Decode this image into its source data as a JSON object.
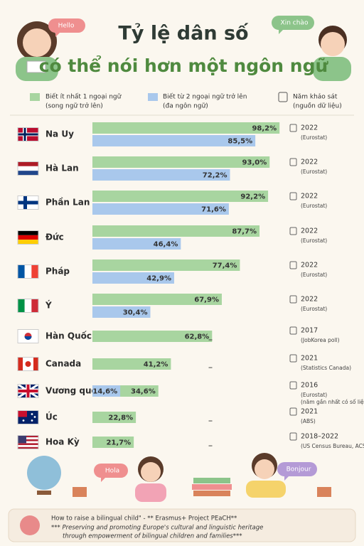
{
  "chart_data": {
    "type": "bar",
    "orientation": "horizontal",
    "title": "Tỷ lệ dân số",
    "subtitle": "có thể nói hơn một ngôn ngữ",
    "categories": [
      "Na Uy",
      "Hà Lan",
      "Phần Lan",
      "Đức",
      "Pháp",
      "Ý",
      "Hàn Quốc",
      "Canada",
      "Vương quốc Anh",
      "Úc",
      "Hoa Kỳ"
    ],
    "series": [
      {
        "name": "Biết ít nhất 1 ngoại ngữ",
        "subtitle": "(song ngữ trở lên)",
        "color": "#a8d5a0",
        "values": [
          98.2,
          93.0,
          92.2,
          87.7,
          77.4,
          67.9,
          62.8,
          41.2,
          34.6,
          22.8,
          21.7
        ],
        "value_labels": [
          "98,2%",
          "93,0%",
          "92,2%",
          "87,7%",
          "77,4%",
          "67,9%",
          "62,8%",
          "41,2%",
          "34,6%",
          "22,8%",
          "21,7%"
        ]
      },
      {
        "name": "Biết từ 2 ngoại ngữ trở lên",
        "subtitle": "(đa ngôn ngữ)",
        "color": "#a9c8ec",
        "values": [
          85.5,
          72.2,
          71.6,
          46.4,
          42.9,
          30.4,
          null,
          null,
          14.6,
          null,
          null
        ],
        "value_labels": [
          "85,5%",
          "72,2%",
          "71,6%",
          "46,4%",
          "42,9%",
          "30,4%",
          "_",
          "_",
          "14,6%",
          "_",
          "_"
        ]
      }
    ],
    "xlim": [
      0,
      100
    ],
    "year_legend": "Năm khảo sát",
    "source_legend": "(nguồn dữ liệu)",
    "years": [
      "2022",
      "2022",
      "2022",
      "2022",
      "2022",
      "2022",
      "2017",
      "2021",
      "2016",
      "2021",
      "2018–2022"
    ],
    "sources": [
      "(Eurostat)",
      "(Eurostat)",
      "(Eurostat)",
      "(Eurostat)",
      "(Eurostat)",
      "(Eurostat)",
      "(JobKorea poll)",
      "(Statistics Canada)",
      "(Eurostat)",
      "(ABS)",
      "(US Census Bureau, ACS)"
    ],
    "uk_note": "(năm gần nhất có số liệu)"
  },
  "illustration": {
    "bubbles": [
      "Hello",
      "Xin chào",
      "Hola",
      "Bonjour"
    ]
  },
  "footer": {
    "line1": "How to raise a bilingual child\" - ** Erasmus+ Project PEaCH**",
    "line2": "*** Preserving and promoting Europe's cultural and linguistic heritage",
    "line3": "through empowerment of bilingual children and families***"
  }
}
